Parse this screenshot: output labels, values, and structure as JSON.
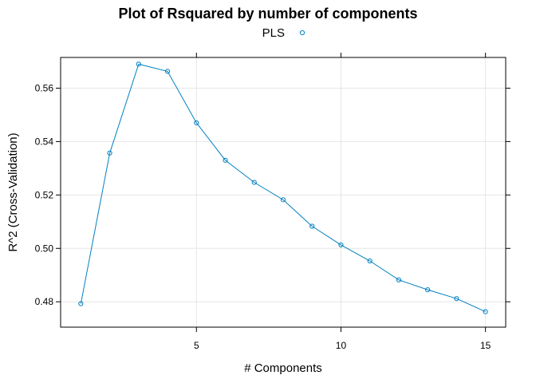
{
  "chart_data": {
    "type": "line",
    "title": "Plot of Rsquared by number of components",
    "xlabel": "# Components",
    "ylabel": "R^2 (Cross-Validation)",
    "xlim": [
      0.3,
      15.7
    ],
    "ylim": [
      0.4705,
      0.5715
    ],
    "x_ticks": [
      5,
      10,
      15
    ],
    "y_ticks": [
      0.48,
      0.5,
      0.52,
      0.54,
      0.56
    ],
    "x_tick_labels": [
      "5",
      "10",
      "15"
    ],
    "y_tick_labels": [
      "0.48",
      "0.50",
      "0.52",
      "0.54",
      "0.56"
    ],
    "grid": true,
    "legend_position": "top",
    "legend": [
      "PLS"
    ],
    "series": [
      {
        "name": "PLS",
        "color": "#0080c0",
        "marker": "circle-open",
        "x": [
          1,
          2,
          3,
          4,
          5,
          6,
          7,
          8,
          9,
          10,
          11,
          12,
          13,
          14,
          15
        ],
        "y": [
          0.4793,
          0.5357,
          0.569,
          0.5663,
          0.547,
          0.533,
          0.5247,
          0.5182,
          0.5083,
          0.5013,
          0.4953,
          0.4882,
          0.4845,
          0.4812,
          0.4763
        ]
      }
    ]
  }
}
